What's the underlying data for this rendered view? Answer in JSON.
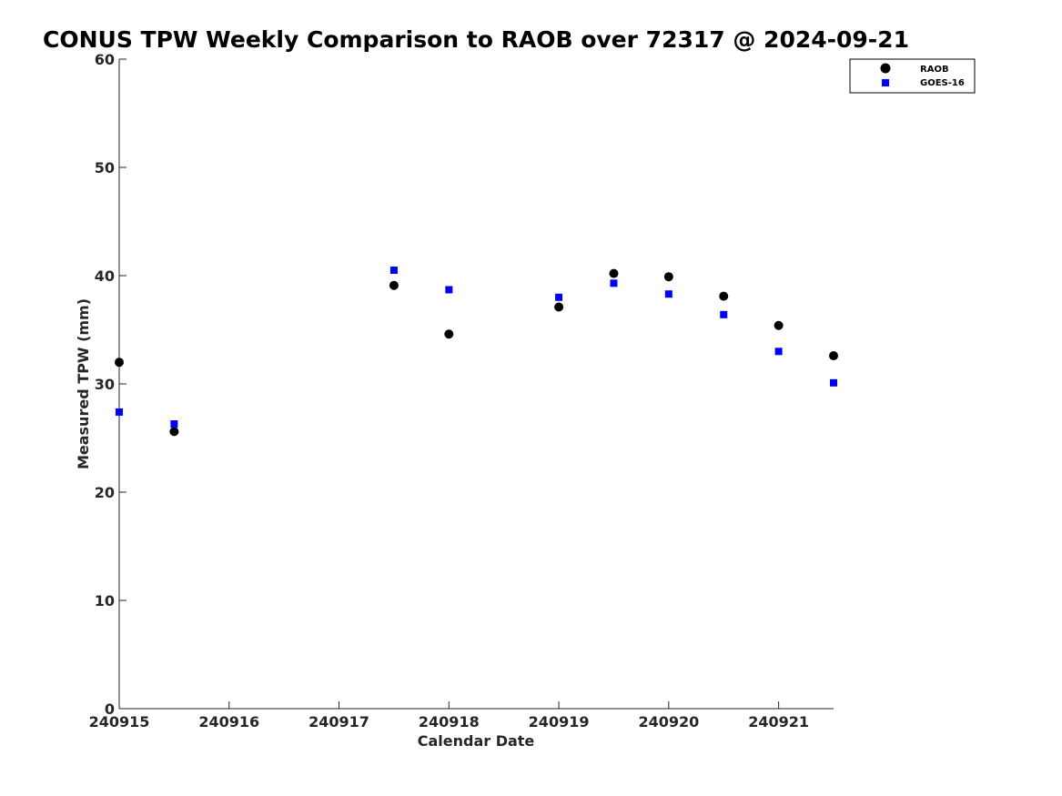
{
  "chart_data": {
    "type": "scatter",
    "title": "CONUS TPW Weekly Comparison to RAOB over 72317 @ 2024-09-21",
    "xlabel": "Calendar Date",
    "ylabel": "Measured TPW (mm)",
    "xlim": [
      240915,
      240921.5
    ],
    "ylim": [
      0,
      60
    ],
    "x_ticks": [
      240915,
      240916,
      240917,
      240918,
      240919,
      240920,
      240921
    ],
    "x_tick_labels": [
      "240915",
      "240916",
      "240917",
      "240918",
      "240919",
      "240920",
      "240921"
    ],
    "y_ticks": [
      0,
      10,
      20,
      30,
      40,
      50,
      60
    ],
    "y_tick_labels": [
      "0",
      "10",
      "20",
      "30",
      "40",
      "50",
      "60"
    ],
    "grid": false,
    "legend_position": "top-right",
    "series": [
      {
        "name": "RAOB",
        "marker": "circle",
        "color": "#000000",
        "x": [
          240915,
          240915.5,
          240917.5,
          240918,
          240919,
          240919.5,
          240920,
          240920.5,
          240921,
          240921.5
        ],
        "y": [
          32.0,
          25.6,
          39.1,
          34.6,
          37.1,
          40.2,
          39.9,
          38.1,
          35.4,
          32.6
        ]
      },
      {
        "name": "GOES-16",
        "marker": "square",
        "color": "#0000ff",
        "x": [
          240915,
          240915.5,
          240917.5,
          240918,
          240919,
          240919.5,
          240920,
          240920.5,
          240921,
          240921.5
        ],
        "y": [
          27.4,
          26.3,
          40.5,
          38.7,
          38.0,
          39.3,
          38.3,
          36.4,
          33.0,
          30.1
        ]
      }
    ]
  }
}
